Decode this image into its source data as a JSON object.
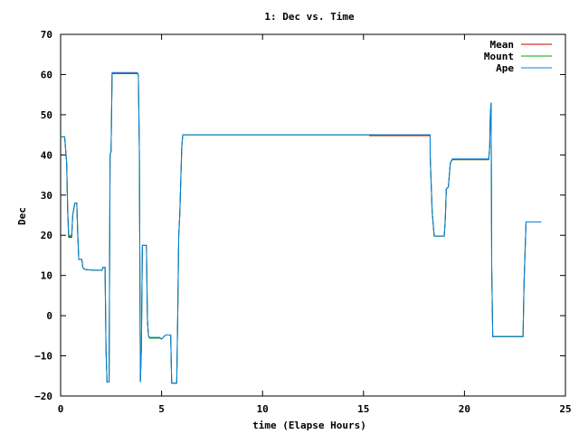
{
  "chart_data": {
    "type": "line",
    "title": "1: Dec vs. Time",
    "xlabel": "time (Elapse Hours)",
    "ylabel": "Dec",
    "xlim": [
      0,
      25
    ],
    "ylim": [
      -20,
      70
    ],
    "xticks": [
      0,
      5,
      10,
      15,
      20,
      25
    ],
    "yticks": [
      -20,
      -10,
      0,
      10,
      20,
      30,
      40,
      50,
      60,
      70
    ],
    "xtick_labels": [
      "0",
      "5",
      "10",
      "15",
      "20",
      "25"
    ],
    "ytick_labels": [
      "−20",
      "−10",
      "0",
      "10",
      "20",
      "30",
      "40",
      "50",
      "60",
      "70"
    ],
    "grid": false,
    "legend_position": "top-right",
    "series": [
      {
        "name": "Mean",
        "color": "#cc0000",
        "points": [
          [
            0.0,
            44.5
          ],
          [
            0.2,
            44.5
          ],
          [
            0.3,
            38
          ],
          [
            0.35,
            26
          ],
          [
            0.4,
            19.5
          ],
          [
            0.55,
            19.5
          ],
          [
            0.6,
            25
          ],
          [
            0.7,
            28
          ],
          [
            0.8,
            28
          ],
          [
            0.85,
            20
          ],
          [
            0.9,
            14
          ],
          [
            1.05,
            14
          ],
          [
            1.1,
            12
          ],
          [
            1.2,
            11.5
          ],
          [
            1.6,
            11.3
          ],
          [
            2.05,
            11.3
          ],
          [
            2.1,
            12
          ],
          [
            2.2,
            12
          ],
          [
            2.25,
            -9
          ],
          [
            2.3,
            -16.5
          ],
          [
            2.4,
            -16.5
          ],
          [
            2.45,
            40
          ],
          [
            2.5,
            41
          ],
          [
            2.55,
            60.3
          ],
          [
            3.8,
            60.3
          ],
          [
            3.85,
            60.0
          ],
          [
            3.9,
            41
          ],
          [
            3.95,
            -16.5
          ],
          [
            4.0,
            -8
          ],
          [
            4.05,
            17.5
          ],
          [
            4.25,
            17.5
          ],
          [
            4.3,
            -1
          ],
          [
            4.35,
            -5
          ],
          [
            4.4,
            -5.5
          ],
          [
            4.9,
            -5.5
          ],
          [
            5.0,
            -5.8
          ],
          [
            5.2,
            -4.8
          ],
          [
            5.45,
            -4.8
          ],
          [
            5.5,
            -16.8
          ],
          [
            5.75,
            -16.8
          ],
          [
            5.8,
            0
          ],
          [
            5.85,
            20
          ],
          [
            5.9,
            25
          ],
          [
            6.0,
            42
          ],
          [
            6.05,
            45
          ],
          [
            15.0,
            45
          ],
          [
            15.3,
            45
          ],
          [
            15.3,
            44.8
          ],
          [
            18.3,
            44.8
          ],
          [
            18.3,
            40
          ],
          [
            18.4,
            26
          ],
          [
            18.5,
            19.8
          ],
          [
            19.0,
            19.8
          ],
          [
            19.05,
            24
          ],
          [
            19.1,
            31.5
          ],
          [
            19.2,
            32
          ],
          [
            19.3,
            38
          ],
          [
            19.4,
            38.8
          ],
          [
            21.2,
            38.8
          ],
          [
            21.25,
            42
          ],
          [
            21.28,
            50
          ],
          [
            21.32,
            53
          ],
          [
            21.35,
            12
          ],
          [
            21.4,
            -5.2
          ],
          [
            22.9,
            -5.2
          ],
          [
            22.95,
            8
          ],
          [
            23.05,
            23.3
          ],
          [
            23.8,
            23.3
          ]
        ]
      },
      {
        "name": "Mount",
        "color": "#00a000",
        "points": [
          [
            0.0,
            44.5
          ],
          [
            0.2,
            44.5
          ],
          [
            0.3,
            38
          ],
          [
            0.35,
            26
          ],
          [
            0.4,
            19.7
          ],
          [
            0.55,
            19.7
          ],
          [
            0.6,
            25
          ],
          [
            0.7,
            28
          ],
          [
            0.8,
            28
          ],
          [
            0.85,
            20
          ],
          [
            0.9,
            14
          ],
          [
            1.05,
            14
          ],
          [
            1.1,
            12
          ],
          [
            1.2,
            11.5
          ],
          [
            1.6,
            11.3
          ],
          [
            2.05,
            11.3
          ],
          [
            2.1,
            12
          ],
          [
            2.2,
            12
          ],
          [
            2.25,
            -9
          ],
          [
            2.3,
            -16.5
          ],
          [
            2.4,
            -16.5
          ],
          [
            2.45,
            40
          ],
          [
            2.5,
            41
          ],
          [
            2.55,
            60.2
          ],
          [
            3.8,
            60.2
          ],
          [
            3.85,
            60.0
          ],
          [
            3.9,
            41
          ],
          [
            3.95,
            -16.5
          ],
          [
            4.0,
            -8
          ],
          [
            4.05,
            17.5
          ],
          [
            4.25,
            17.5
          ],
          [
            4.3,
            -1
          ],
          [
            4.35,
            -5
          ],
          [
            4.4,
            -5.6
          ],
          [
            4.9,
            -5.6
          ],
          [
            5.0,
            -5.8
          ],
          [
            5.2,
            -4.8
          ],
          [
            5.45,
            -4.8
          ],
          [
            5.5,
            -16.8
          ],
          [
            5.75,
            -16.8
          ],
          [
            5.8,
            0
          ],
          [
            5.85,
            20
          ],
          [
            5.9,
            25
          ],
          [
            6.0,
            42
          ],
          [
            6.05,
            45
          ],
          [
            15.3,
            45
          ],
          [
            18.3,
            45
          ],
          [
            18.3,
            40
          ],
          [
            18.4,
            26
          ],
          [
            18.5,
            19.8
          ],
          [
            19.0,
            19.8
          ],
          [
            19.05,
            24
          ],
          [
            19.1,
            31.5
          ],
          [
            19.2,
            32
          ],
          [
            19.3,
            38
          ],
          [
            19.4,
            38.8
          ],
          [
            21.2,
            38.8
          ],
          [
            21.25,
            42
          ],
          [
            21.28,
            50
          ],
          [
            21.32,
            53
          ],
          [
            21.35,
            12
          ],
          [
            21.4,
            -5.2
          ],
          [
            22.9,
            -5.2
          ],
          [
            22.95,
            8
          ],
          [
            23.05,
            23.3
          ],
          [
            23.8,
            23.3
          ]
        ]
      },
      {
        "name": "Ape",
        "color": "#0080e0",
        "points": [
          [
            0.0,
            44.5
          ],
          [
            0.2,
            44.5
          ],
          [
            0.3,
            38
          ],
          [
            0.35,
            26
          ],
          [
            0.4,
            20
          ],
          [
            0.55,
            20
          ],
          [
            0.6,
            25
          ],
          [
            0.7,
            28
          ],
          [
            0.8,
            28
          ],
          [
            0.85,
            20
          ],
          [
            0.9,
            14
          ],
          [
            1.05,
            14
          ],
          [
            1.1,
            12
          ],
          [
            1.2,
            11.5
          ],
          [
            1.6,
            11.3
          ],
          [
            2.05,
            11.3
          ],
          [
            2.1,
            12
          ],
          [
            2.2,
            12
          ],
          [
            2.25,
            -9
          ],
          [
            2.3,
            -16.5
          ],
          [
            2.4,
            -16.5
          ],
          [
            2.45,
            40
          ],
          [
            2.5,
            41
          ],
          [
            2.55,
            60.5
          ],
          [
            3.8,
            60.5
          ],
          [
            3.85,
            60.0
          ],
          [
            3.9,
            41
          ],
          [
            3.95,
            -16.5
          ],
          [
            4.0,
            -8
          ],
          [
            4.05,
            17.5
          ],
          [
            4.25,
            17.5
          ],
          [
            4.3,
            -1
          ],
          [
            4.35,
            -5
          ],
          [
            4.4,
            -5.4
          ],
          [
            4.9,
            -5.4
          ],
          [
            5.0,
            -5.8
          ],
          [
            5.2,
            -4.8
          ],
          [
            5.45,
            -4.8
          ],
          [
            5.5,
            -16.8
          ],
          [
            5.75,
            -16.8
          ],
          [
            5.8,
            0
          ],
          [
            5.85,
            20
          ],
          [
            5.9,
            25
          ],
          [
            6.0,
            42
          ],
          [
            6.05,
            45
          ],
          [
            15.3,
            45
          ],
          [
            18.3,
            45
          ],
          [
            18.3,
            40
          ],
          [
            18.4,
            26
          ],
          [
            18.5,
            19.8
          ],
          [
            19.0,
            19.8
          ],
          [
            19.05,
            24
          ],
          [
            19.1,
            31.5
          ],
          [
            19.2,
            32
          ],
          [
            19.3,
            38
          ],
          [
            19.4,
            39
          ],
          [
            21.2,
            39
          ],
          [
            21.25,
            42
          ],
          [
            21.28,
            50
          ],
          [
            21.32,
            53
          ],
          [
            21.35,
            12
          ],
          [
            21.4,
            -5.2
          ],
          [
            22.9,
            -5.2
          ],
          [
            22.95,
            8
          ],
          [
            23.05,
            23.3
          ],
          [
            23.8,
            23.3
          ]
        ]
      }
    ]
  }
}
